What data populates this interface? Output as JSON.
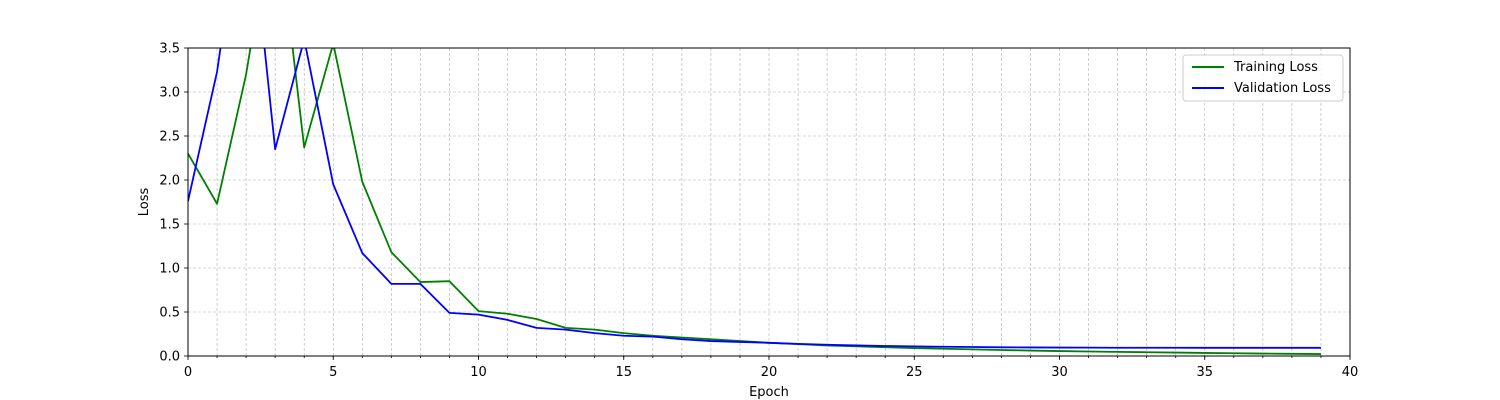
{
  "chart_data": {
    "type": "line",
    "title": "",
    "xlabel": "Epoch",
    "ylabel": "Loss",
    "xlim": [
      0,
      40
    ],
    "ylim": [
      0,
      3.5
    ],
    "x_ticks": [
      0,
      5,
      10,
      15,
      20,
      25,
      30,
      35,
      40
    ],
    "x_tick_labels": [
      "0",
      "5",
      "10",
      "15",
      "20",
      "25",
      "30",
      "35",
      "40"
    ],
    "y_ticks": [
      0,
      0.5,
      1.0,
      1.5,
      2.0,
      2.5,
      3.0,
      3.5
    ],
    "y_tick_labels": [
      "0.0",
      "0.5",
      "1.0",
      "1.5",
      "2.0",
      "2.5",
      "3.0",
      "3.5"
    ],
    "x_minor_step": 1,
    "grid": true,
    "legend_position": "top-right",
    "x": [
      0,
      1,
      2,
      3,
      4,
      5,
      6,
      7,
      8,
      9,
      10,
      11,
      12,
      13,
      14,
      15,
      16,
      17,
      18,
      19,
      20,
      21,
      22,
      23,
      24,
      25,
      26,
      27,
      28,
      29,
      30,
      31,
      32,
      33,
      34,
      35,
      36,
      37,
      38,
      39
    ],
    "series": [
      {
        "name": "Training Loss",
        "color": "#008000",
        "values": [
          2.3,
          1.73,
          3.2,
          5.2,
          2.37,
          3.55,
          1.98,
          1.18,
          0.84,
          0.85,
          0.51,
          0.48,
          0.42,
          0.32,
          0.3,
          0.26,
          0.23,
          0.21,
          0.19,
          0.17,
          0.15,
          0.135,
          0.12,
          0.11,
          0.1,
          0.09,
          0.082,
          0.075,
          0.068,
          0.062,
          0.056,
          0.051,
          0.047,
          0.043,
          0.039,
          0.035,
          0.031,
          0.028,
          0.025,
          0.022
        ]
      },
      {
        "name": "Validation Loss",
        "color": "#0000ff",
        "values": [
          1.76,
          3.23,
          5.5,
          2.35,
          3.6,
          1.95,
          1.17,
          0.82,
          0.82,
          0.49,
          0.47,
          0.41,
          0.32,
          0.3,
          0.26,
          0.23,
          0.22,
          0.19,
          0.17,
          0.16,
          0.15,
          0.138,
          0.128,
          0.12,
          0.114,
          0.109,
          0.105,
          0.102,
          0.099,
          0.097,
          0.096,
          0.095,
          0.094,
          0.094,
          0.094,
          0.093,
          0.093,
          0.093,
          0.093,
          0.093
        ]
      }
    ]
  }
}
